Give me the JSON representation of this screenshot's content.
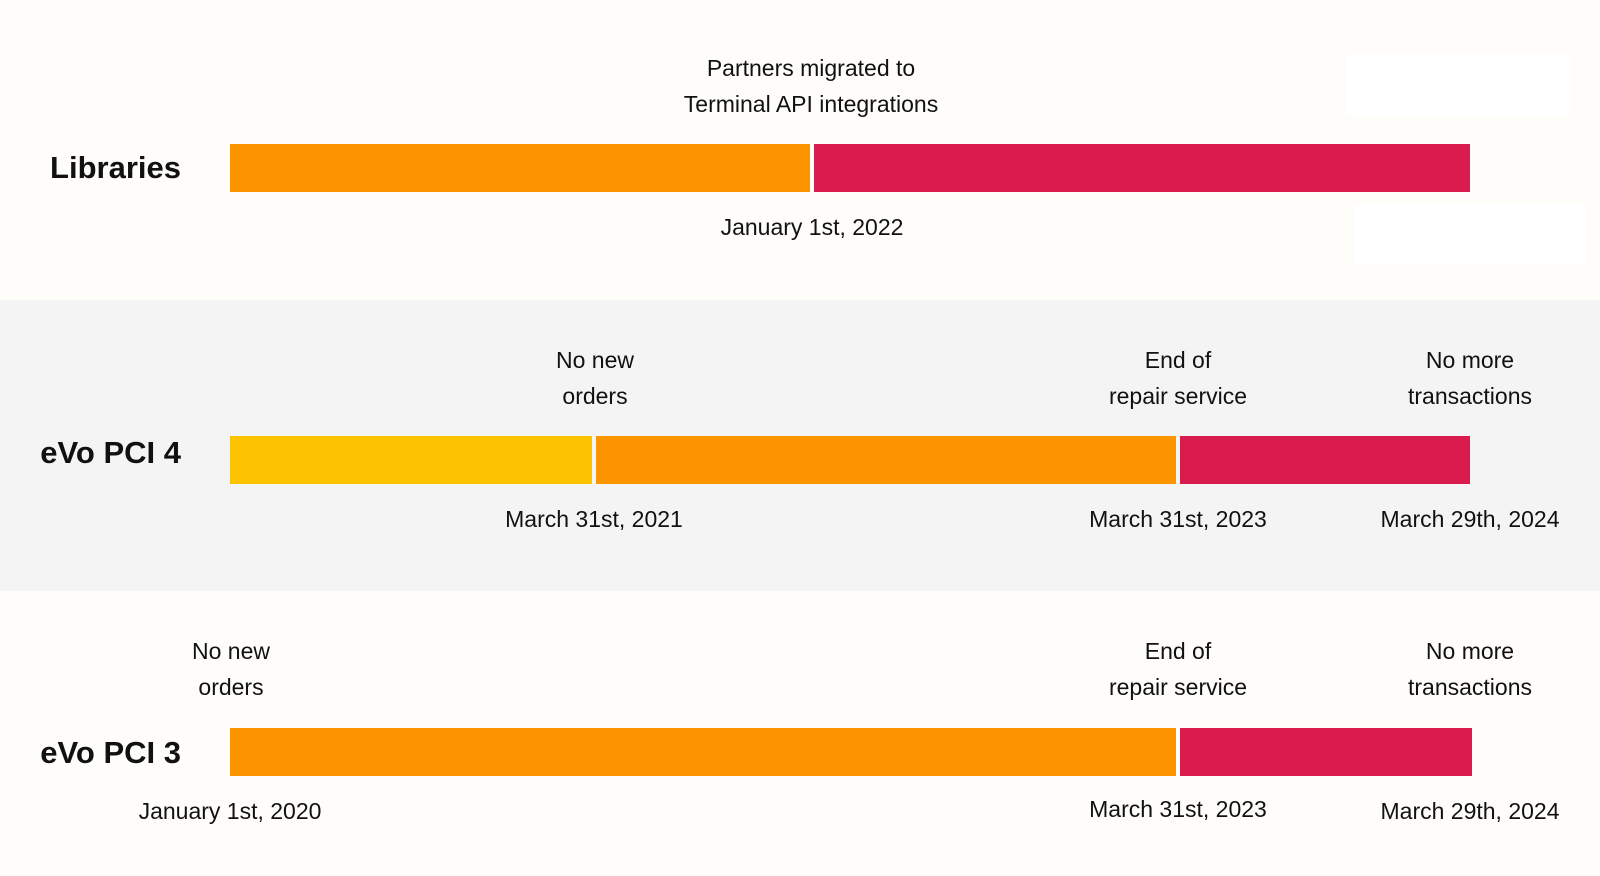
{
  "colors": {
    "yellow": "#fdc300",
    "orange": "#fc9500",
    "red": "#d91c4d",
    "band_light": "#fefdfa",
    "band_grey": "#f4f4f5"
  },
  "rows": {
    "libraries": {
      "label": "Libraries",
      "note_line1": "Partners migrated to",
      "note_line2": "Terminal API integrations",
      "date": "January 1st, 2022"
    },
    "pci4": {
      "label": "eVo PCI 4",
      "note1_line1": "No new",
      "note1_line2": "orders",
      "note2_line1": "End of",
      "note2_line2": "repair service",
      "note3_line1": "No more",
      "note3_line2": "transactions",
      "date1": "March 31st, 2021",
      "date2": "March 31st, 2023",
      "date3": "March 29th, 2024"
    },
    "pci3": {
      "label": "eVo PCI 3",
      "note1_line1": "No new",
      "note1_line2": "orders",
      "note2_line1": "End of",
      "note2_line2": "repair service",
      "note3_line1": "No more",
      "note3_line2": "transactions",
      "date1": "January 1st, 2020",
      "date2": "March 31st, 2023",
      "date3": "March 29th, 2024"
    }
  }
}
